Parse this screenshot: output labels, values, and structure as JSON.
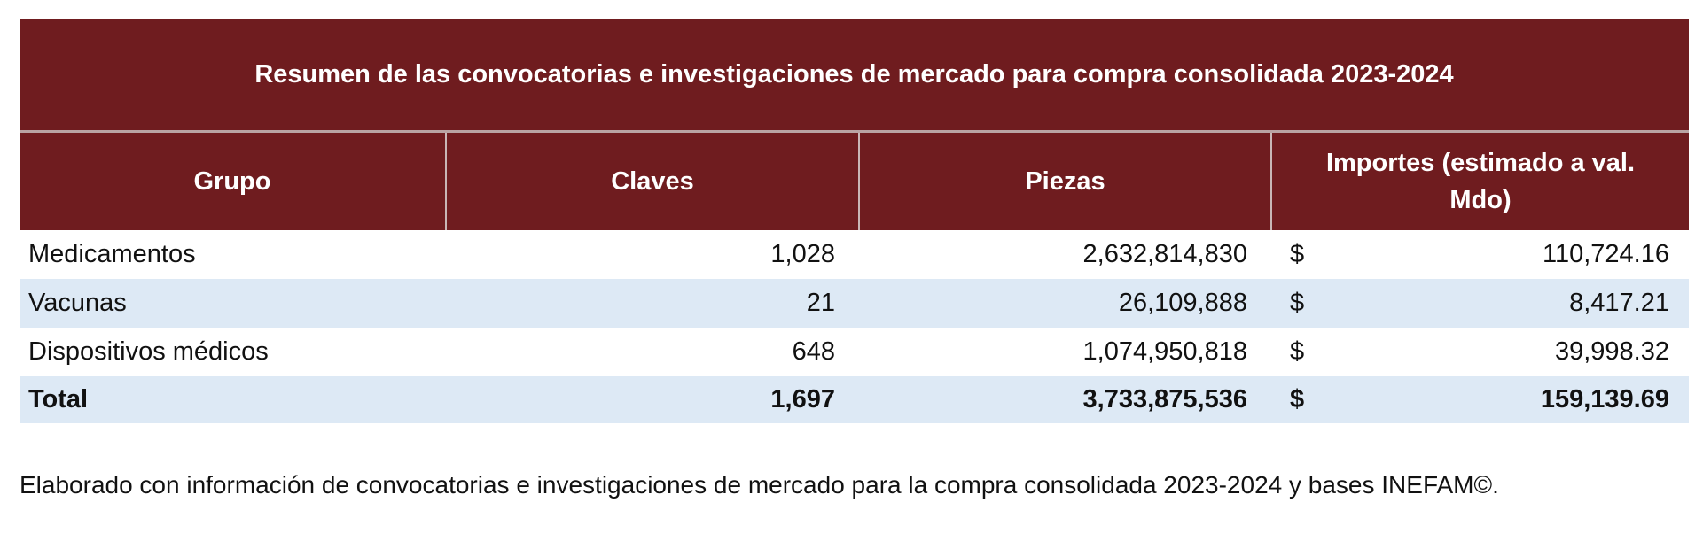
{
  "table": {
    "title": "Resumen de las convocatorias e investigaciones de mercado para compra consolidada 2023-2024",
    "columns": [
      "Grupo",
      "Claves",
      "Piezas",
      "Importes (estimado a val. Mdo)"
    ],
    "rows": [
      [
        "Medicamentos",
        "1,028",
        "2,632,814,830",
        "$",
        "110,724.16"
      ],
      [
        "Vacunas",
        "21",
        "26,109,888",
        "$",
        "8,417.21"
      ],
      [
        "Dispositivos médicos",
        "648",
        "1,074,950,818",
        "$",
        "39,998.32"
      ],
      [
        "Total",
        "1,697",
        "3,733,875,536",
        "$",
        "159,139.69"
      ]
    ]
  },
  "footnote": "Elaborado con información de convocatorias e investigaciones de mercado para la compra consolidada 2023-2024 y bases INEFAM©."
}
